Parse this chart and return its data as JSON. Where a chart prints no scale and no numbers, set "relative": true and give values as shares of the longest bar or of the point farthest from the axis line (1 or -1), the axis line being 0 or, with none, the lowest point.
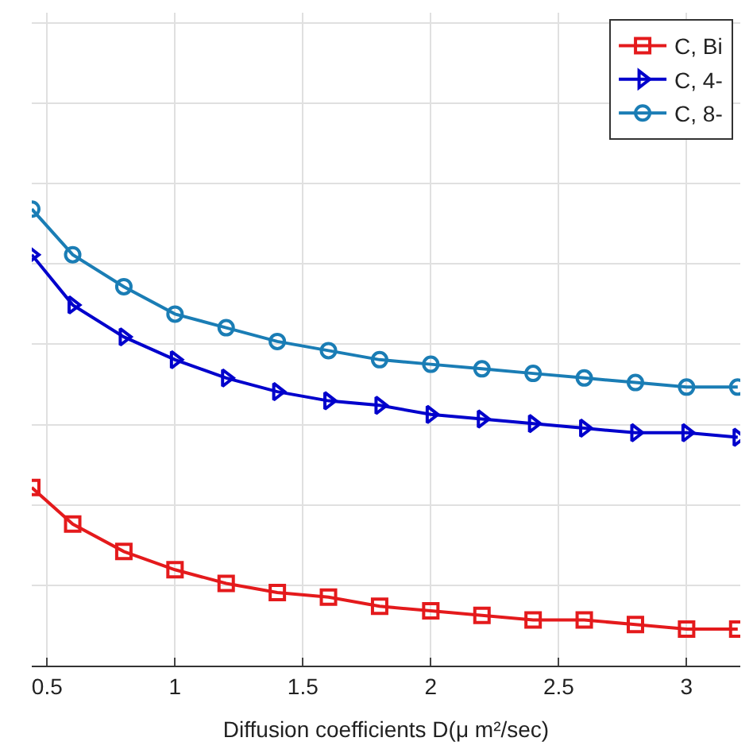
{
  "chart_data": {
    "type": "line",
    "relative": true,
    "xlabel": "Diffusion coefficients D(μ m²/sec)",
    "x": [
      0.44,
      0.6,
      0.8,
      1.0,
      1.2,
      1.4,
      1.6,
      1.8,
      2.0,
      2.2,
      2.4,
      2.6,
      2.8,
      3.0,
      3.2
    ],
    "xlim": [
      0.44,
      3.21
    ],
    "xticks": [
      0.5,
      1,
      1.5,
      2,
      2.5,
      3
    ],
    "grid": true,
    "legend": "top right",
    "series": [
      {
        "name": "C, Bi",
        "color": "#e41a1c",
        "marker": "square",
        "values": [
          0.39,
          0.31,
          0.25,
          0.21,
          0.18,
          0.16,
          0.15,
          0.13,
          0.12,
          0.11,
          0.1,
          0.1,
          0.09,
          0.08,
          0.08
        ]
      },
      {
        "name": "C, 4-",
        "color": "#0000cc",
        "marker": "triangle",
        "values": [
          0.9,
          0.79,
          0.72,
          0.67,
          0.63,
          0.6,
          0.58,
          0.57,
          0.55,
          0.54,
          0.53,
          0.52,
          0.51,
          0.51,
          0.5
        ]
      },
      {
        "name": "C, 8-",
        "color": "#1a7db5",
        "marker": "circle",
        "values": [
          1.0,
          0.9,
          0.83,
          0.77,
          0.74,
          0.71,
          0.69,
          0.67,
          0.66,
          0.65,
          0.64,
          0.63,
          0.62,
          0.61,
          0.61
        ]
      }
    ]
  }
}
